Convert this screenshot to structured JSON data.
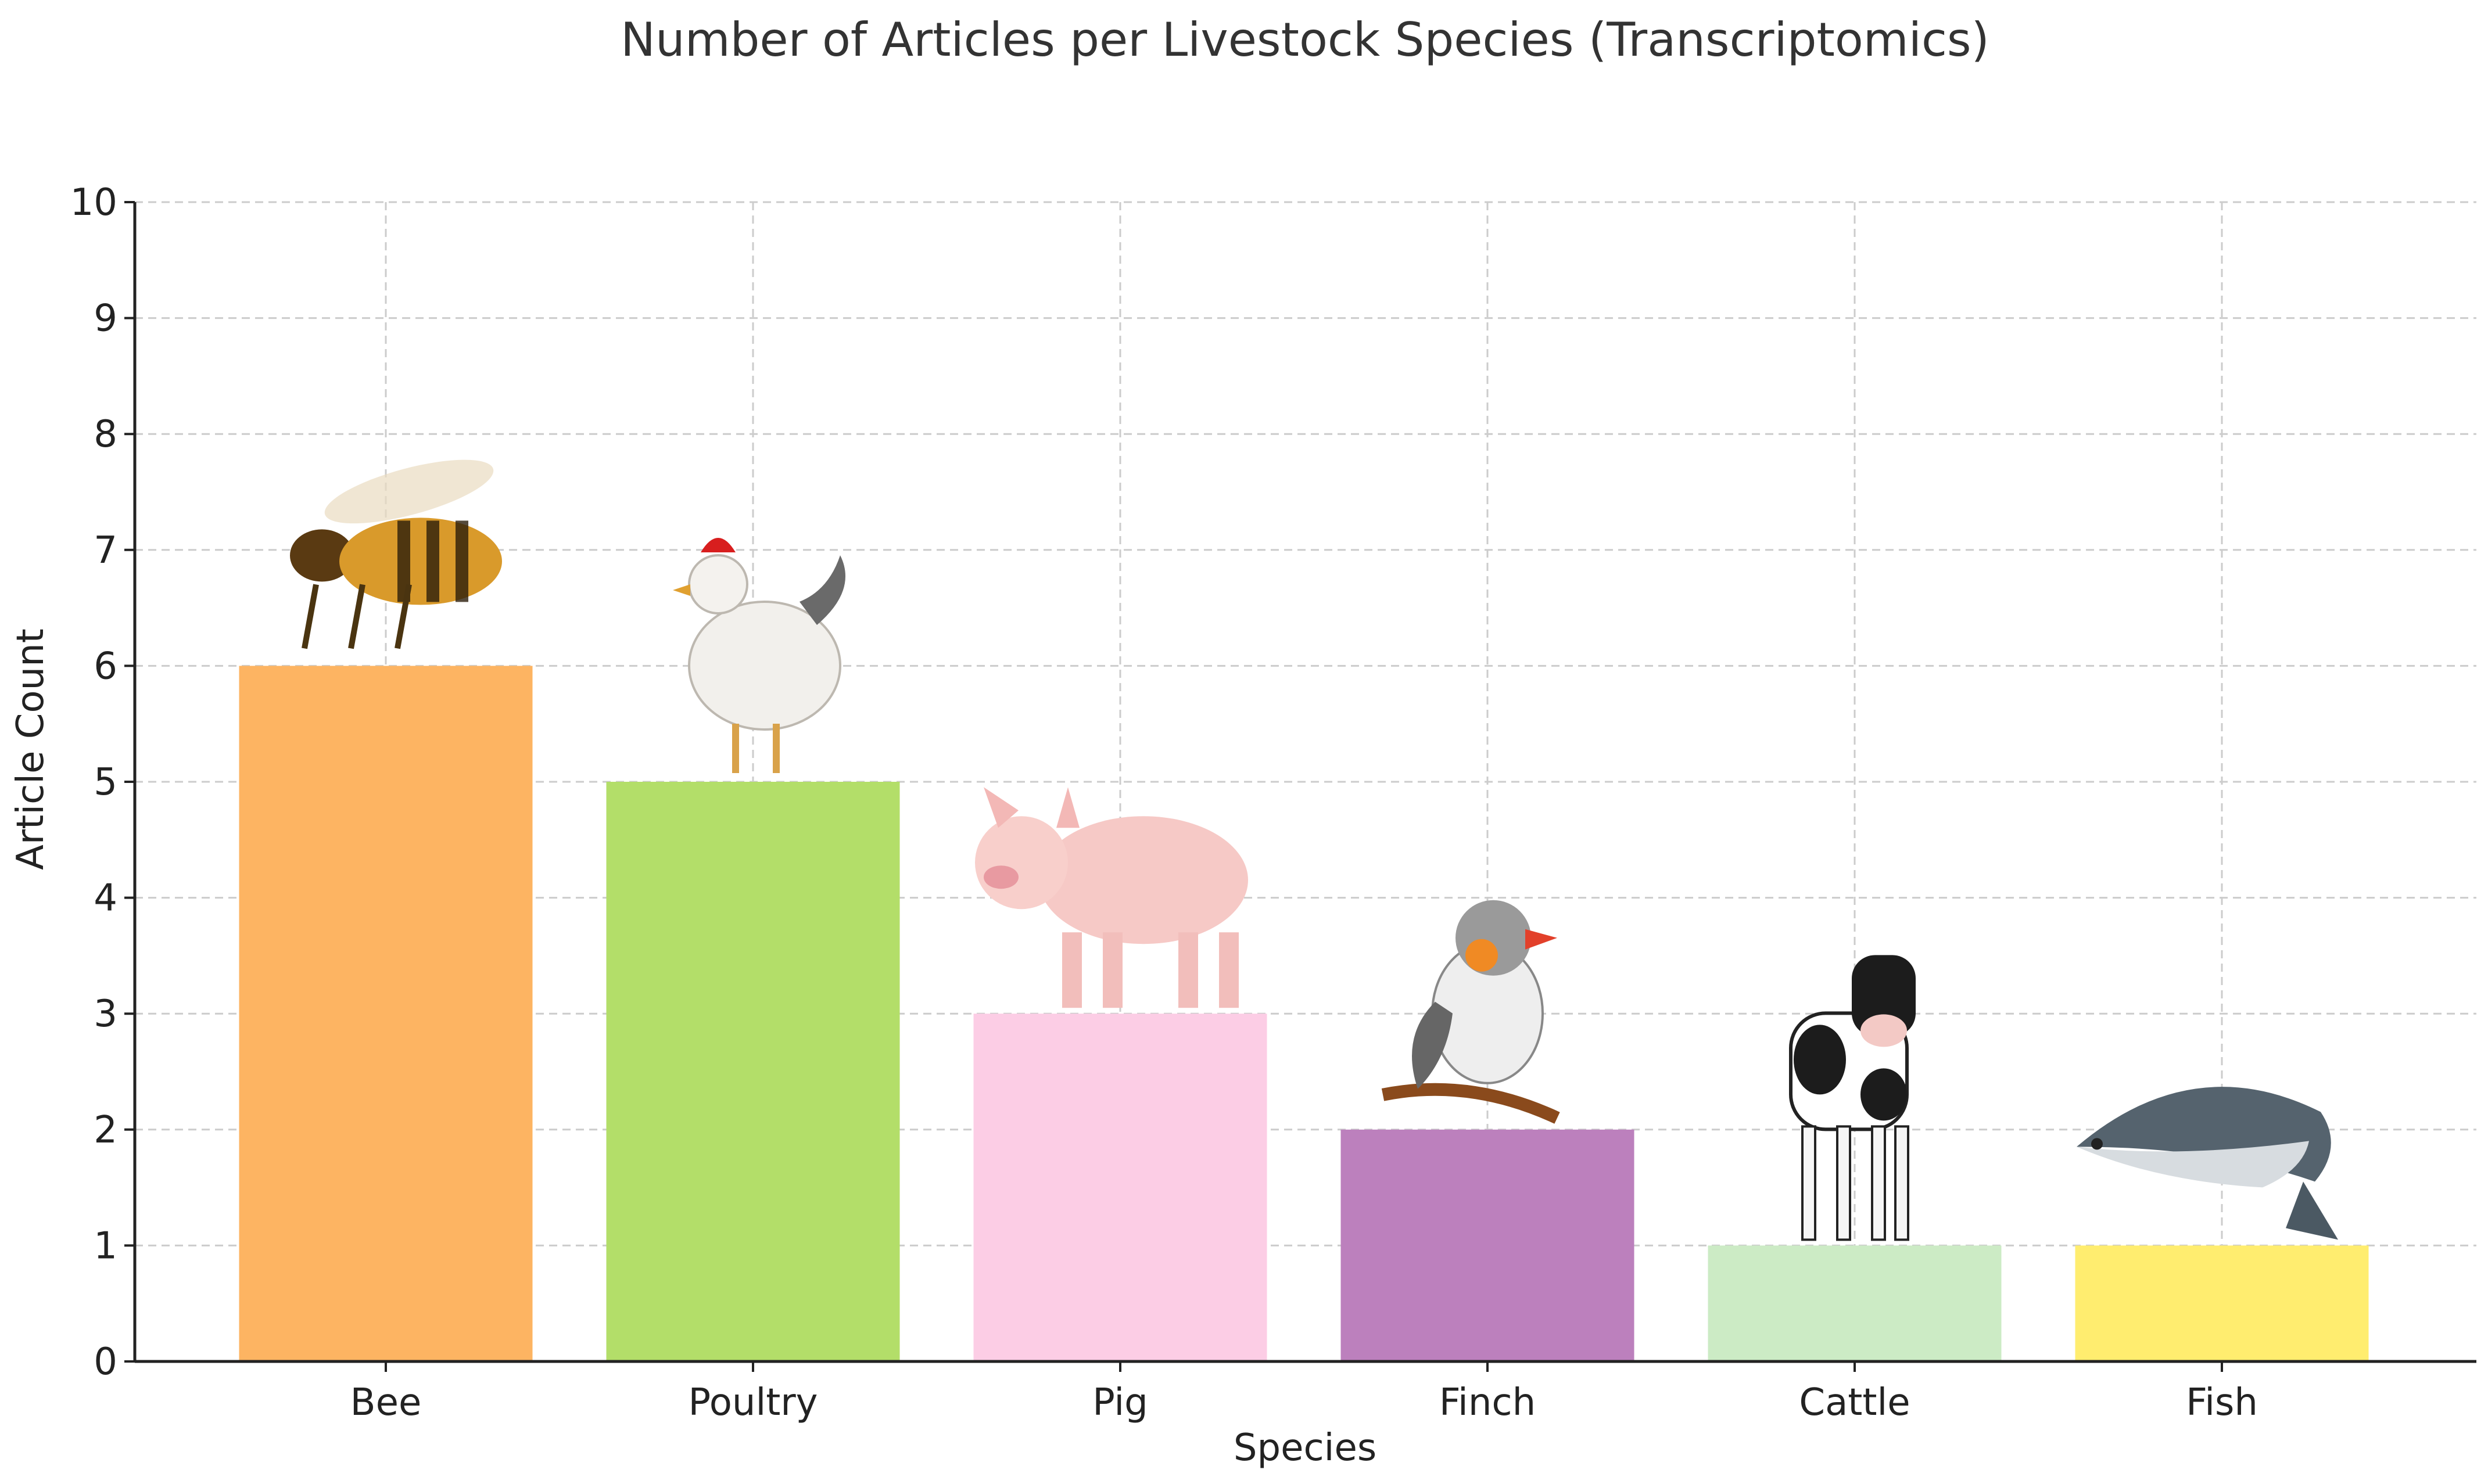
{
  "chart_data": {
    "type": "bar",
    "title": "Number of Articles per Livestock Species (Transcriptomics)",
    "xlabel": "Species",
    "ylabel": "Article Count",
    "categories": [
      "Bee",
      "Poultry",
      "Pig",
      "Finch",
      "Cattle",
      "Fish"
    ],
    "values": [
      6,
      5,
      3,
      2,
      1,
      1
    ],
    "bar_colors": [
      "#fdb462",
      "#b3de69",
      "#fccde5",
      "#bc80bd",
      "#ccebc5",
      "#ffed6f"
    ],
    "bar_images": [
      "bee-image",
      "poultry-image",
      "pig-image",
      "finch-image",
      "cattle-image",
      "fish-image"
    ],
    "ylim": [
      0,
      10
    ],
    "yticks": [
      0,
      1,
      2,
      3,
      4,
      5,
      6,
      7,
      8,
      9,
      10
    ],
    "grid": true,
    "legend": "none"
  }
}
